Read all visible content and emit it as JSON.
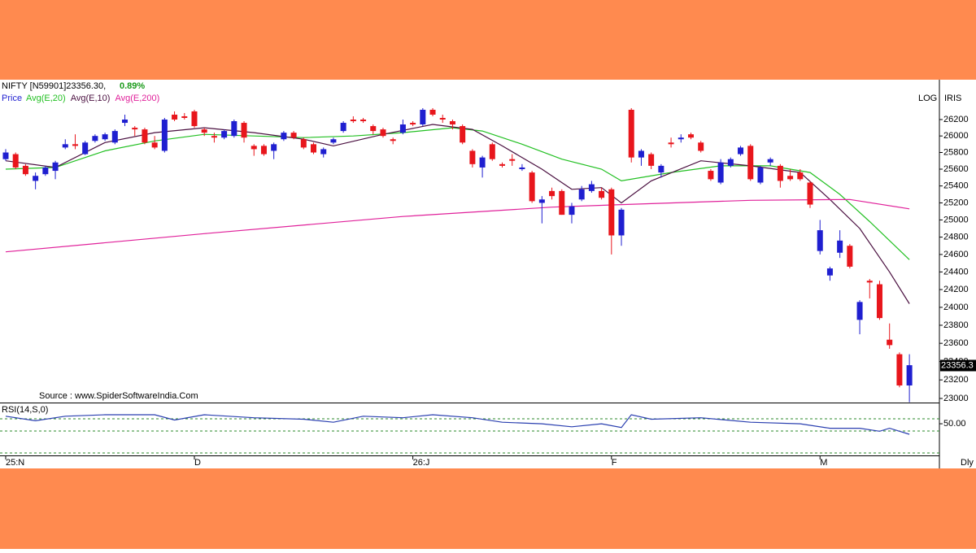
{
  "chart_data": {
    "type": "candlestick",
    "title": "NIFTY [N59901]23356.30,",
    "change": "0.89%",
    "price_label": "Price",
    "scale_label": "LOG",
    "iris_label": "IRIS",
    "period_label": "Dly",
    "source": "Source : www.SpiderSoftwareIndia.Com",
    "log": true,
    "up_color": "#1f1fd0",
    "down_color": "#e8161c",
    "price_color": "#1f1fd0",
    "ylim": [
      22956,
      26672
    ],
    "yticks": [
      23000,
      23200,
      23400,
      23600,
      23800,
      24000,
      24200,
      24400,
      24600,
      24800,
      25000,
      25200,
      25400,
      25600,
      25800,
      26000,
      26200
    ],
    "last_price": {
      "value": 23356.3,
      "label": "23356.3"
    },
    "xticks": [
      {
        "value": 0,
        "label": "25:N"
      },
      {
        "value": 19,
        "label": "D"
      },
      {
        "value": 41,
        "label": "26:J"
      },
      {
        "value": 61,
        "label": "F"
      },
      {
        "value": 82,
        "label": "M"
      }
    ],
    "open": [
      25720,
      25780,
      25640,
      25460,
      25540,
      25580,
      25860,
      25900,
      25780,
      25940,
      25960,
      25920,
      26160,
      26100,
      26080,
      25920,
      25820,
      26260,
      26240,
      26300,
      26080,
      26000,
      25980,
      26000,
      26160,
      25880,
      25880,
      25820,
      25960,
      26040,
      25960,
      25900,
      25780,
      25920,
      26060,
      26200,
      26200,
      26120,
      26080,
      25960,
      26040,
      26160,
      26140,
      26320,
      26220,
      26180,
      26120,
      25820,
      25620,
      25900,
      25660,
      25720,
      25600,
      25560,
      25200,
      25340,
      25340,
      25060,
      25240,
      25340,
      25340,
      25360,
      24820,
      26320,
      25740,
      25780,
      25560,
      25920,
      25960,
      26020,
      25920,
      25580,
      25440,
      25640,
      25780,
      25880,
      25440,
      25680,
      25640,
      25520,
      25560,
      25440,
      24640,
      24360,
      24620,
      24700,
      23860,
      24300,
      24260,
      23640,
      23480,
      23140
    ],
    "high": [
      25840,
      25800,
      25660,
      25560,
      25640,
      25700,
      25960,
      26020,
      25940,
      26020,
      26040,
      26080,
      26260,
      26120,
      26100,
      26000,
      26220,
      26300,
      26280,
      26320,
      26100,
      26040,
      26080,
      26200,
      26180,
      25900,
      25900,
      25920,
      26060,
      26060,
      25980,
      25920,
      25860,
      25980,
      26180,
      26240,
      26220,
      26140,
      26100,
      25980,
      26200,
      26180,
      26340,
      26340,
      26260,
      26200,
      26140,
      25840,
      25760,
      25920,
      25680,
      25780,
      25660,
      25580,
      25280,
      25380,
      25360,
      25200,
      25400,
      25460,
      25380,
      25380,
      25140,
      26340,
      25840,
      25800,
      25660,
      25980,
      26020,
      26040,
      25940,
      25600,
      25720,
      25740,
      25880,
      25900,
      25640,
      25740,
      25660,
      25600,
      25600,
      25460,
      25000,
      24460,
      24880,
      24720,
      24080,
      24320,
      24300,
      23820,
      23500,
      23480
    ],
    "low": [
      25700,
      25600,
      25520,
      25360,
      25520,
      25480,
      25840,
      25840,
      25770,
      25920,
      25940,
      25900,
      26120,
      26000,
      25900,
      25840,
      25800,
      26180,
      26200,
      26100,
      26000,
      25920,
      25960,
      25980,
      25920,
      25760,
      25760,
      25720,
      25940,
      25960,
      25840,
      25780,
      25740,
      25900,
      26040,
      26160,
      26160,
      26020,
      25980,
      25900,
      26020,
      26120,
      26120,
      26240,
      26160,
      26080,
      25900,
      25620,
      25500,
      25700,
      25620,
      25640,
      25580,
      25200,
      24960,
      25240,
      25060,
      24960,
      25220,
      25320,
      25240,
      24600,
      24700,
      25680,
      25640,
      25600,
      25500,
      25860,
      25920,
      25960,
      25800,
      25460,
      25420,
      25620,
      25760,
      25460,
      25420,
      25640,
      25380,
      25460,
      25460,
      25140,
      24600,
      24300,
      24560,
      24440,
      23700,
      24100,
      23860,
      23540,
      23120,
      22960
    ],
    "close": [
      25800,
      25620,
      25540,
      25520,
      25620,
      25680,
      25900,
      25880,
      25920,
      26000,
      26020,
      26060,
      26200,
      26080,
      25920,
      25860,
      26200,
      26200,
      26220,
      26120,
      26040,
      25980,
      26060,
      26180,
      25980,
      25840,
      25780,
      25900,
      26040,
      25980,
      25860,
      25800,
      25840,
      25960,
      26160,
      26180,
      26180,
      26060,
      26000,
      25940,
      26140,
      26140,
      26320,
      26260,
      26200,
      26140,
      25920,
      25660,
      25740,
      25720,
      25640,
      25700,
      25620,
      25220,
      25240,
      25280,
      25060,
      25160,
      25360,
      25420,
      25260,
      24820,
      25120,
      25740,
      25820,
      25640,
      25640,
      25900,
      25980,
      25980,
      25820,
      25480,
      25680,
      25720,
      25860,
      25480,
      25620,
      25720,
      25460,
      25480,
      25480,
      25180,
      24880,
      24440,
      24760,
      24460,
      24060,
      24280,
      23880,
      23580,
      23140,
      23360
    ],
    "series": [
      {
        "name": "Avg(E,20)",
        "color": "#22c022",
        "x": [
          0,
          5,
          10,
          15,
          20,
          25,
          30,
          35,
          40,
          45,
          48,
          52,
          56,
          60,
          62,
          67,
          72,
          77,
          81,
          84,
          87,
          91
        ],
        "values": [
          25600,
          25620,
          25820,
          25940,
          26020,
          26000,
          25980,
          26000,
          26040,
          26100,
          26060,
          25900,
          25720,
          25600,
          25460,
          25560,
          25640,
          25640,
          25560,
          25300,
          24980,
          24540
        ]
      },
      {
        "name": "Avg(E,10)",
        "color": "#4a1040",
        "x": [
          0,
          5,
          10,
          15,
          20,
          25,
          30,
          33,
          38,
          43,
          47,
          50,
          54,
          57,
          60,
          62,
          65,
          70,
          75,
          80,
          83,
          86,
          89,
          91
        ],
        "values": [
          25700,
          25620,
          25920,
          26040,
          26100,
          26040,
          25960,
          25880,
          26020,
          26140,
          26080,
          25880,
          25600,
          25360,
          25380,
          25200,
          25460,
          25700,
          25640,
          25560,
          25240,
          24900,
          24400,
          24040
        ]
      },
      {
        "name": "Avg(E,200)",
        "color": "#e0209a",
        "x": [
          0,
          20,
          40,
          55,
          62,
          75,
          85,
          91
        ],
        "values": [
          24630,
          24840,
          25040,
          25150,
          25180,
          25230,
          25240,
          25130
        ]
      }
    ],
    "rsi": {
      "name": "RSI(14,S,0)",
      "color": "#2a3fb0",
      "ylim": [
        10,
        75
      ],
      "yticks": [
        {
          "value": 50,
          "label": "50.00"
        }
      ],
      "x": [
        0,
        3,
        6,
        10,
        15,
        17,
        20,
        25,
        30,
        33,
        36,
        40,
        43,
        47,
        50,
        54,
        57,
        60,
        62,
        63,
        65,
        70,
        75,
        80,
        83,
        86,
        88,
        89,
        91
      ],
      "values": [
        60,
        54,
        60,
        62,
        62,
        55,
        62,
        58,
        56,
        52,
        60,
        58,
        62,
        58,
        52,
        50,
        46,
        50,
        45,
        62,
        56,
        58,
        52,
        50,
        44,
        44,
        40,
        44,
        36
      ]
    }
  }
}
